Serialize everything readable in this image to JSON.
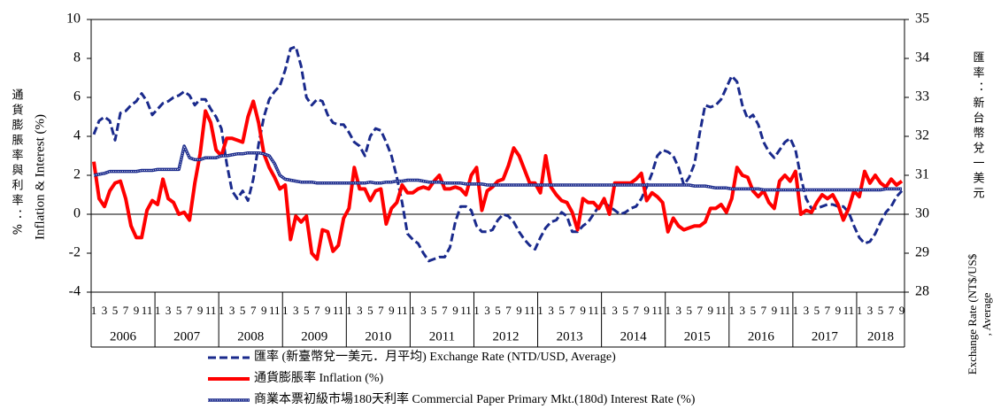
{
  "chart_data": {
    "type": "line",
    "ylabel": "Inflation & Interest (%)",
    "ylabel_cjk": "通貨膨脹率與利率：%",
    "y2label_cjk": "匯率：新台幣兌一美元",
    "y2label": [
      "Exchange Rate (NT$/US$",
      ", Average"
    ],
    "years": [
      "2006",
      "2007",
      "2008",
      "2009",
      "2010",
      "2011",
      "2012",
      "2013",
      "2014",
      "2015",
      "2016",
      "2017",
      "2018"
    ],
    "categories": [
      "1",
      null,
      "3",
      null,
      "5",
      null,
      "7",
      null,
      "9",
      null,
      "11",
      null,
      "1",
      null,
      "3",
      null,
      "5",
      null,
      "7",
      null,
      "9",
      null,
      "11",
      null,
      "1",
      null,
      "3",
      null,
      "5",
      null,
      "7",
      null,
      "9",
      null,
      "11",
      null,
      "1",
      null,
      "3",
      null,
      "5",
      null,
      "7",
      null,
      "9",
      null,
      "11",
      null,
      "1",
      null,
      "3",
      null,
      "5",
      null,
      "7",
      null,
      "9",
      null,
      "11",
      null,
      "1",
      null,
      "3",
      null,
      "5",
      null,
      "7",
      null,
      "9",
      null,
      "11",
      null,
      "1",
      null,
      "3",
      null,
      "5",
      null,
      "7",
      null,
      "9",
      null,
      "11",
      null,
      "1",
      null,
      "3",
      null,
      "5",
      null,
      "7",
      null,
      "9",
      null,
      "11",
      null,
      "1",
      null,
      "3",
      null,
      "5",
      null,
      "7",
      null,
      "9",
      null,
      "11",
      null,
      "1",
      null,
      "3",
      null,
      "5",
      null,
      "7",
      null,
      "9",
      null,
      "11",
      null,
      "1",
      null,
      "3",
      null,
      "5",
      null,
      "7",
      null,
      "9",
      null,
      "11",
      null,
      "1",
      null,
      "3",
      null,
      "5",
      null,
      "7",
      null,
      "9",
      null,
      "11",
      null,
      "1",
      null,
      "3",
      null,
      "5",
      null,
      "7",
      null,
      "9"
    ],
    "ylim": [
      -4,
      10
    ],
    "yticks": [
      -4,
      -2,
      0,
      2,
      4,
      6,
      8,
      10
    ],
    "y2lim": [
      28,
      35
    ],
    "y2ticks": [
      28,
      29,
      30,
      31,
      32,
      33,
      34,
      35
    ],
    "zero_line": true,
    "series": [
      {
        "name": "匯率 (新臺幣兌一美元．月平均) Exchange Rate (NTD/USD, Average)",
        "color": "#1a2a8c",
        "style": "dashed",
        "axis": "y2",
        "values": [
          32.05,
          32.4,
          32.5,
          32.4,
          31.9,
          32.6,
          32.65,
          32.8,
          32.9,
          33.1,
          32.9,
          32.55,
          32.7,
          32.85,
          32.9,
          33.0,
          33.05,
          33.15,
          33.05,
          32.8,
          32.95,
          32.95,
          32.7,
          32.5,
          32.2,
          31.3,
          30.6,
          30.4,
          30.6,
          30.35,
          30.9,
          31.8,
          32.5,
          32.95,
          33.15,
          33.3,
          33.7,
          34.25,
          34.3,
          33.8,
          33.0,
          32.8,
          32.95,
          32.9,
          32.55,
          32.35,
          32.3,
          32.3,
          32.1,
          31.85,
          31.75,
          31.5,
          32.0,
          32.2,
          32.15,
          31.85,
          31.5,
          30.95,
          30.3,
          29.5,
          29.35,
          29.25,
          29.0,
          28.8,
          28.85,
          28.9,
          28.9,
          29.15,
          29.8,
          30.2,
          30.2,
          30.1,
          29.7,
          29.55,
          29.55,
          29.6,
          29.85,
          30.0,
          29.95,
          29.8,
          29.55,
          29.35,
          29.2,
          29.1,
          29.4,
          29.65,
          29.8,
          29.85,
          30.05,
          29.95,
          29.55,
          29.55,
          29.7,
          29.8,
          30.0,
          30.2,
          30.3,
          30.2,
          30.1,
          30.0,
          30.05,
          30.15,
          30.2,
          30.4,
          30.7,
          31.05,
          31.5,
          31.65,
          31.6,
          31.5,
          31.2,
          30.75,
          30.95,
          31.3,
          32.1,
          32.8,
          32.75,
          32.8,
          32.95,
          33.25,
          33.55,
          33.4,
          32.8,
          32.45,
          32.55,
          32.3,
          31.85,
          31.6,
          31.45,
          31.65,
          31.85,
          31.95,
          31.65,
          30.95,
          30.4,
          30.15,
          30.15,
          30.2,
          30.25,
          30.25,
          30.2,
          30.2,
          30.05,
          29.7,
          29.4,
          29.25,
          29.3,
          29.5,
          29.8,
          30.05,
          30.2,
          30.45,
          30.6
        ]
      },
      {
        "name": "通貨膨脹率 Inflation (%)",
        "color": "#ff0000",
        "style": "solid",
        "values": [
          2.7,
          0.8,
          0.4,
          1.2,
          1.6,
          1.7,
          0.8,
          -0.6,
          -1.2,
          -1.2,
          0.2,
          0.7,
          0.5,
          1.8,
          0.8,
          0.6,
          0.0,
          0.1,
          -0.3,
          1.6,
          3.1,
          5.3,
          4.7,
          3.3,
          3.0,
          3.9,
          3.9,
          3.8,
          3.7,
          5.0,
          5.8,
          4.7,
          3.1,
          2.4,
          1.9,
          1.3,
          1.5,
          -1.3,
          -0.1,
          -0.4,
          -0.1,
          -2.0,
          -2.3,
          -0.8,
          -0.9,
          -1.9,
          -1.6,
          -0.2,
          0.3,
          2.4,
          1.3,
          1.3,
          0.7,
          1.2,
          1.3,
          -0.5,
          0.3,
          0.6,
          1.5,
          1.1,
          1.1,
          1.3,
          1.4,
          1.3,
          1.7,
          2.0,
          1.3,
          1.3,
          1.4,
          1.3,
          1.0,
          2.0,
          2.4,
          0.2,
          1.2,
          1.4,
          1.7,
          1.8,
          2.5,
          3.4,
          3.0,
          2.3,
          1.6,
          1.6,
          1.1,
          3.0,
          1.4,
          1.0,
          0.7,
          0.6,
          0.1,
          -0.8,
          0.8,
          0.6,
          0.6,
          0.3,
          0.8,
          0.0,
          1.6,
          1.6,
          1.6,
          1.6,
          1.8,
          2.1,
          0.7,
          1.1,
          0.9,
          0.6,
          -0.9,
          -0.2,
          -0.6,
          -0.8,
          -0.7,
          -0.6,
          -0.6,
          -0.4,
          0.3,
          0.3,
          0.5,
          0.1,
          0.8,
          2.4,
          2.0,
          1.9,
          1.2,
          0.9,
          1.2,
          0.6,
          0.3,
          1.7,
          2.0,
          1.7,
          2.2,
          0.0,
          0.2,
          0.1,
          0.6,
          1.0,
          0.8,
          1.0,
          0.5,
          -0.3,
          0.3,
          1.2,
          0.9,
          2.2,
          1.6,
          2.0,
          1.6,
          1.4,
          1.8,
          1.5,
          1.7
        ]
      },
      {
        "name": "商業本票初級市場180天利率 Commercial Paper Primary Mkt.(180d) Interest Rate (%)",
        "color": "#1a2a8c",
        "style": "double",
        "values": [
          2.0,
          2.05,
          2.1,
          2.2,
          2.2,
          2.2,
          2.2,
          2.2,
          2.2,
          2.25,
          2.25,
          2.25,
          2.3,
          2.3,
          2.3,
          2.3,
          2.3,
          3.5,
          2.9,
          2.8,
          2.8,
          2.9,
          2.9,
          2.9,
          3.0,
          3.0,
          3.05,
          3.1,
          3.1,
          3.15,
          3.15,
          3.15,
          3.1,
          3.0,
          2.6,
          2.0,
          1.8,
          1.75,
          1.7,
          1.65,
          1.65,
          1.65,
          1.6,
          1.6,
          1.6,
          1.6,
          1.6,
          1.6,
          1.6,
          1.6,
          1.6,
          1.6,
          1.65,
          1.6,
          1.6,
          1.65,
          1.65,
          1.7,
          1.7,
          1.75,
          1.75,
          1.75,
          1.7,
          1.65,
          1.65,
          1.65,
          1.6,
          1.6,
          1.6,
          1.6,
          1.55,
          1.55,
          1.55,
          1.55,
          1.5,
          1.5,
          1.5,
          1.5,
          1.5,
          1.5,
          1.5,
          1.5,
          1.5,
          1.5,
          1.5,
          1.5,
          1.5,
          1.5,
          1.5,
          1.5,
          1.5,
          1.5,
          1.5,
          1.5,
          1.5,
          1.5,
          1.5,
          1.5,
          1.5,
          1.5,
          1.5,
          1.5,
          1.5,
          1.5,
          1.5,
          1.5,
          1.5,
          1.5,
          1.5,
          1.5,
          1.5,
          1.5,
          1.5,
          1.45,
          1.45,
          1.45,
          1.4,
          1.35,
          1.35,
          1.35,
          1.3,
          1.3,
          1.3,
          1.3,
          1.3,
          1.3,
          1.25,
          1.25,
          1.25,
          1.25,
          1.25,
          1.25,
          1.25,
          1.25,
          1.25,
          1.25,
          1.25,
          1.25,
          1.25,
          1.25,
          1.25,
          1.25,
          1.25,
          1.25,
          1.25,
          1.25,
          1.25,
          1.25,
          1.25,
          1.3,
          1.3,
          1.3,
          1.3
        ]
      }
    ]
  }
}
